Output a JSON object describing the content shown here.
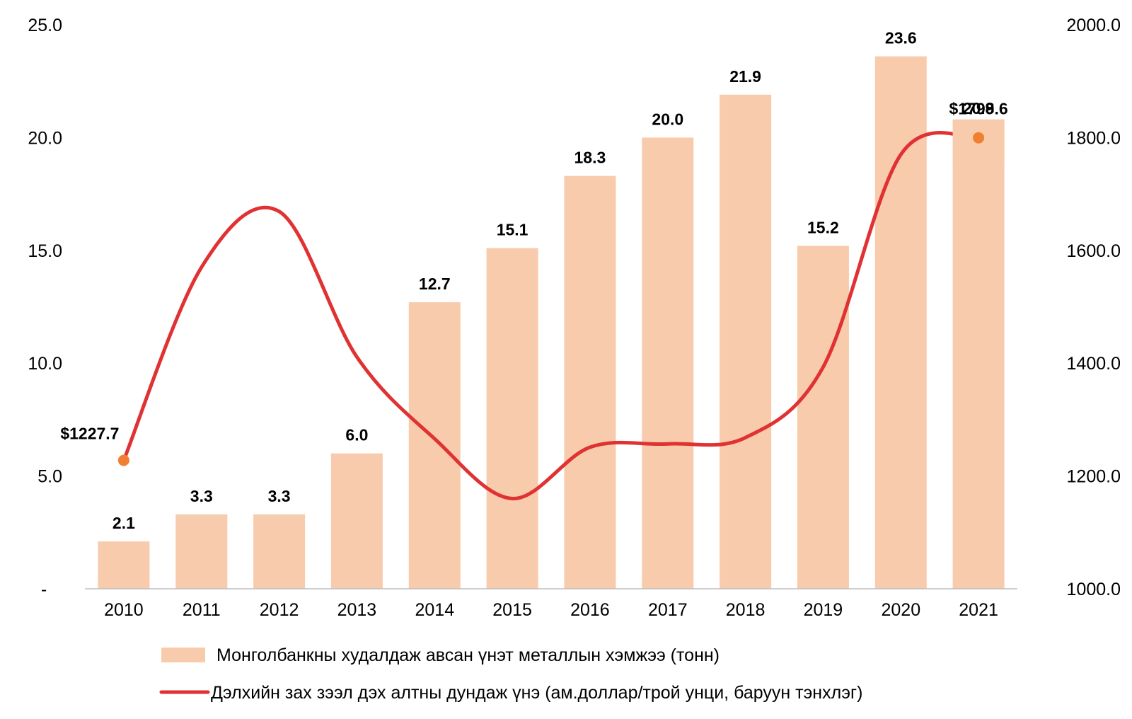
{
  "chart_data": {
    "type": "bar",
    "categories": [
      "2010",
      "2011",
      "2012",
      "2013",
      "2014",
      "2015",
      "2016",
      "2017",
      "2018",
      "2019",
      "2020",
      "2021"
    ],
    "series": [
      {
        "name": "Монголбанкны худалдаж авсан үнэт металлын хэмжээ (тонн)",
        "type": "bar",
        "axis": "left",
        "values": [
          2.1,
          3.3,
          3.3,
          6.0,
          12.7,
          15.1,
          18.3,
          20.0,
          21.9,
          15.2,
          23.6,
          20.8
        ],
        "labels": [
          "2.1",
          "3.3",
          "3.3",
          "6.0",
          "12.7",
          "15.1",
          "18.3",
          "20.0",
          "21.9",
          "15.2",
          "23.6",
          "20.8"
        ],
        "color": "#F8CBAD"
      },
      {
        "name": "Дэлхийн зах зээл дэх алтны дундаж үнэ (ам.доллар/трой унци, баруун тэнхлэг)",
        "type": "line",
        "axis": "right",
        "values": [
          1227.7,
          1570,
          1669,
          1411,
          1266,
          1160,
          1251,
          1257,
          1268,
          1393,
          1770,
          1799.6
        ],
        "color": "#E03232",
        "marker_color": "#F08030",
        "annotations": [
          {
            "category": "2010",
            "value": 1227.7,
            "text": "$1227.7"
          },
          {
            "category": "2021",
            "value": 1799.6,
            "text": "$1799.6"
          }
        ]
      }
    ],
    "left_axis": {
      "min": 0,
      "max": 25,
      "ticks": [
        0,
        5,
        10,
        15,
        20,
        25
      ],
      "tick_labels": [
        "-",
        "5.0",
        "10.0",
        "15.0",
        "20.0",
        "25.0"
      ]
    },
    "right_axis": {
      "min": 1000,
      "max": 2000,
      "ticks": [
        1000,
        1200,
        1400,
        1600,
        1800,
        2000
      ],
      "tick_labels": [
        "1000.0",
        "1200.0",
        "1400.0",
        "1600.0",
        "1800.0",
        "2000.0"
      ]
    },
    "grid": false,
    "legend": {
      "position": "bottom",
      "entries": [
        "Монголбанкны худалдаж авсан үнэт металлын хэмжээ (тонн)",
        "Дэлхийн зах зээл дэх алтны дундаж үнэ (ам.доллар/трой унци, баруун тэнхлэг)"
      ]
    },
    "title": "",
    "xlabel": "",
    "ylabel": ""
  }
}
